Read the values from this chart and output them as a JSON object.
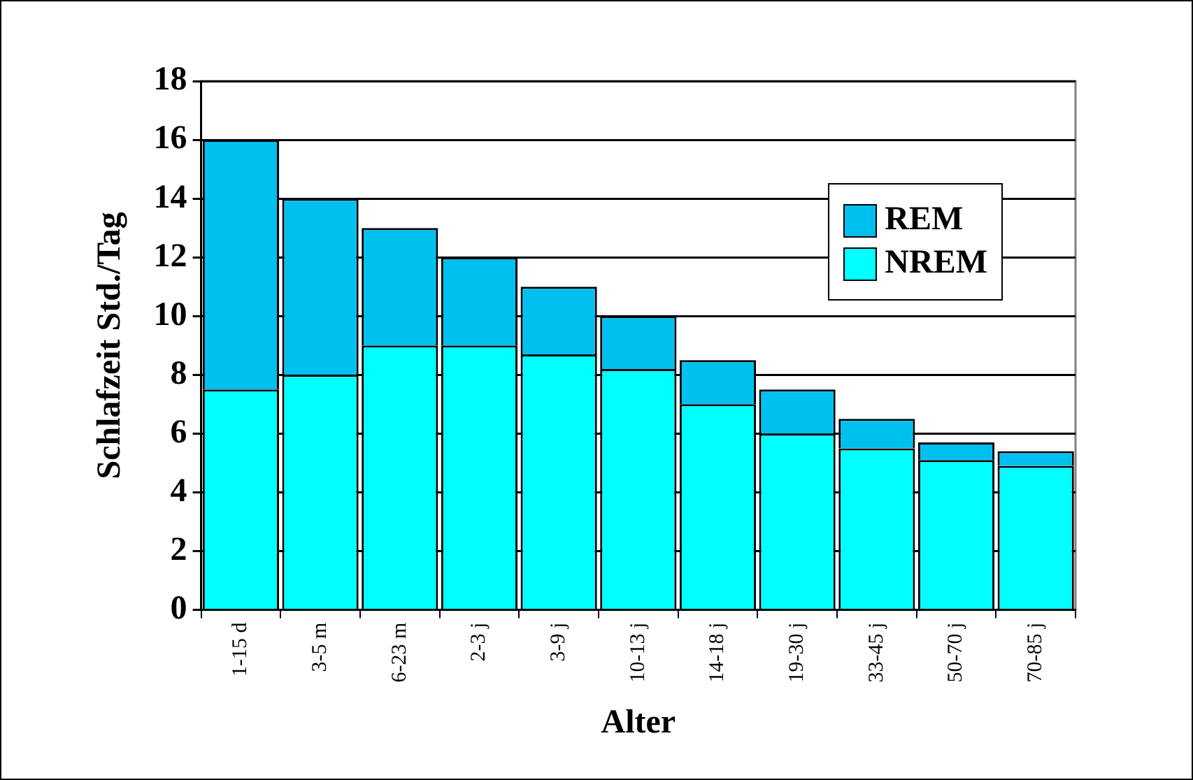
{
  "chart_data": {
    "type": "bar",
    "stacked": true,
    "xlabel": "Alter",
    "ylabel": "Schlafzeit Std./Tag",
    "categories": [
      "1-15 d",
      "3-5 m",
      "6-23 m",
      "2-3 j",
      "3-9 j",
      "10-13 j",
      "14-18 j",
      "19-30 j",
      "33-45 j",
      "50-70 j",
      "70-85 j"
    ],
    "series": [
      {
        "name": "NREM",
        "color": "#00ffff",
        "values": [
          7.5,
          8,
          9,
          9,
          8.7,
          8.2,
          7,
          6,
          5.5,
          5.1,
          4.9
        ]
      },
      {
        "name": "REM",
        "color": "#00c0f0",
        "values": [
          8.5,
          6,
          4,
          3,
          2.3,
          1.8,
          1.5,
          1.5,
          1.0,
          0.6,
          0.5
        ]
      }
    ],
    "ylim": [
      0,
      18
    ],
    "yticks": [
      0,
      2,
      4,
      6,
      8,
      10,
      12,
      14,
      16,
      18
    ],
    "grid": "y",
    "legend": "top right"
  }
}
